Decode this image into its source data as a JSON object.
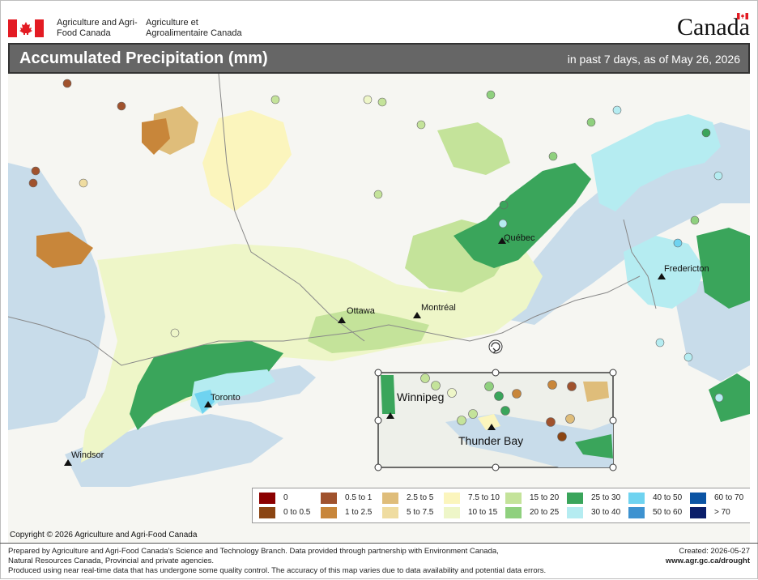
{
  "header": {
    "department_en": "Agriculture and Agri-Food Canada",
    "department_fr": "Agriculture et Agroalimentaire Canada",
    "wordmark": "Canada"
  },
  "title": {
    "main": "Accumulated Precipitation (mm)",
    "period": "in past 7 days, as of May 26, 2026"
  },
  "map": {
    "cities": [
      "Québec",
      "Fredericton",
      "Ottawa",
      "Montréal",
      "Toronto",
      "Windsor"
    ],
    "inset_cities": [
      "Winnipeg",
      "Thunder Bay"
    ],
    "colors": {
      "water": "#c8dcea",
      "land": "#f7f7f3",
      "border": "#888888",
      "selection_frame": "#111111"
    }
  },
  "legend": {
    "items": [
      {
        "label": "0",
        "color": "#8b0000"
      },
      {
        "label": "0 to 0.5",
        "color": "#8b4513"
      },
      {
        "label": "0.5 to 1",
        "color": "#a0522d"
      },
      {
        "label": "1 to 2.5",
        "color": "#c8863a"
      },
      {
        "label": "2.5 to 5",
        "color": "#dfbd7a"
      },
      {
        "label": "5 to 7.5",
        "color": "#efdca0"
      },
      {
        "label": "7.5 to 10",
        "color": "#fbf5bd"
      },
      {
        "label": "10 to 15",
        "color": "#eef6c8"
      },
      {
        "label": "15 to 20",
        "color": "#c4e39a"
      },
      {
        "label": "20 to 25",
        "color": "#8fd07e"
      },
      {
        "label": "25 to 30",
        "color": "#3aa55b"
      },
      {
        "label": "30 to 40",
        "color": "#b5ecf1"
      },
      {
        "label": "40 to 50",
        "color": "#6fd3f0"
      },
      {
        "label": "50 to 60",
        "color": "#3d92d0"
      },
      {
        "label": "60 to 70",
        "color": "#0b54a4"
      },
      {
        "label": "> 70",
        "color": "#0a1e6a"
      }
    ]
  },
  "footer": {
    "copyright": "Copyright © 2026 Agriculture and Agri-Food Canada",
    "line1": "Prepared by Agriculture and Agri-Food Canada's Science and Technology Branch. Data provided through partnership with Environment Canada,",
    "line2": "Natural Resources Canada, Provincial and private agencies.",
    "line3": "Produced using near real-time data that has undergone some quality control. The accuracy of this map varies due to data availability and potential data errors.",
    "created": "Created: 2026-05-27",
    "url": "www.agr.gc.ca/drought"
  }
}
